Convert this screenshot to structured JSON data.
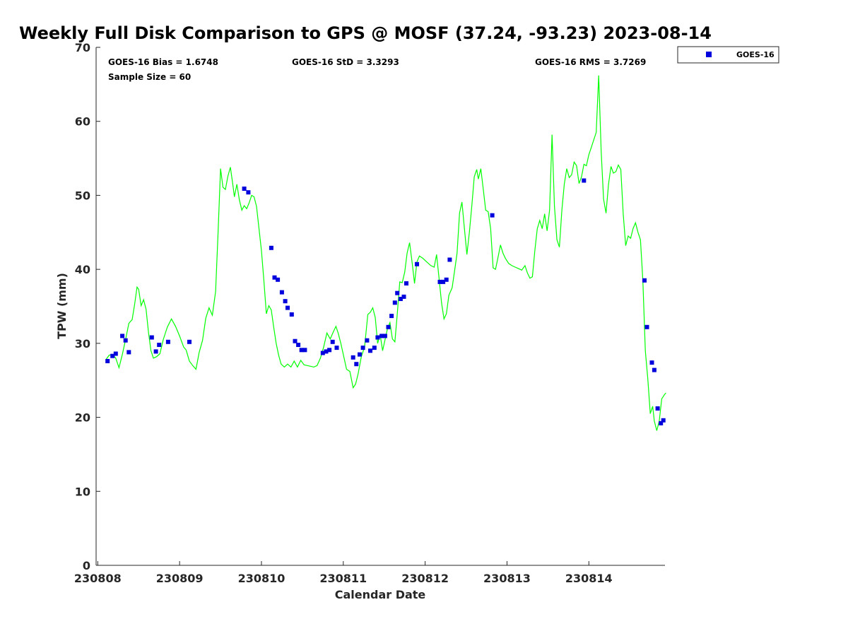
{
  "chart_data": {
    "type": "scatter",
    "title": "Weekly Full Disk Comparison to GPS @ MOSF (37.24, -93.23) 2023-08-14",
    "xlabel": "Calendar Date",
    "ylabel": "TPW (mm)",
    "x_unit": "days (0 = 230808)",
    "xlim": [
      -0.02,
      6.93
    ],
    "ylim": [
      0,
      70
    ],
    "x_ticks": [
      {
        "value": 0,
        "label": "230808"
      },
      {
        "value": 1,
        "label": "230809"
      },
      {
        "value": 2,
        "label": "230810"
      },
      {
        "value": 3,
        "label": "230811"
      },
      {
        "value": 4,
        "label": "230812"
      },
      {
        "value": 5,
        "label": "230813"
      },
      {
        "value": 6,
        "label": "230814"
      }
    ],
    "y_ticks": [
      0,
      10,
      20,
      30,
      40,
      50,
      60,
      70
    ],
    "grid": false,
    "legend": {
      "position": "outside-top-right",
      "entries": [
        "GOES-16"
      ]
    },
    "stats": {
      "bias": "GOES-16 Bias = 1.6748",
      "std": "GOES-16 StD = 3.3293",
      "rms": "GOES-16 RMS = 3.7269",
      "sample": "Sample Size = 60"
    },
    "series": [
      {
        "name": "GPS",
        "kind": "line",
        "color": "#00ff00",
        "points": [
          [
            0.1,
            27.8
          ],
          [
            0.14,
            28.4
          ],
          [
            0.18,
            28.5
          ],
          [
            0.22,
            28.0
          ],
          [
            0.26,
            26.7
          ],
          [
            0.3,
            28.5
          ],
          [
            0.34,
            30.5
          ],
          [
            0.38,
            32.7
          ],
          [
            0.42,
            33.2
          ],
          [
            0.45,
            35.2
          ],
          [
            0.48,
            37.6
          ],
          [
            0.5,
            37.3
          ],
          [
            0.53,
            35.1
          ],
          [
            0.56,
            35.9
          ],
          [
            0.59,
            34.6
          ],
          [
            0.62,
            31.5
          ],
          [
            0.65,
            29.0
          ],
          [
            0.68,
            28.0
          ],
          [
            0.72,
            28.2
          ],
          [
            0.76,
            28.6
          ],
          [
            0.8,
            30.5
          ],
          [
            0.85,
            32.2
          ],
          [
            0.9,
            33.3
          ],
          [
            0.95,
            32.3
          ],
          [
            1.0,
            31.0
          ],
          [
            1.05,
            29.5
          ],
          [
            1.08,
            29.1
          ],
          [
            1.12,
            27.6
          ],
          [
            1.16,
            27.0
          ],
          [
            1.2,
            26.5
          ],
          [
            1.24,
            28.8
          ],
          [
            1.28,
            30.4
          ],
          [
            1.32,
            33.4
          ],
          [
            1.36,
            34.8
          ],
          [
            1.4,
            33.8
          ],
          [
            1.44,
            37.0
          ],
          [
            1.47,
            45.0
          ],
          [
            1.5,
            53.6
          ],
          [
            1.53,
            51.1
          ],
          [
            1.56,
            50.8
          ],
          [
            1.59,
            52.6
          ],
          [
            1.62,
            53.8
          ],
          [
            1.65,
            51.5
          ],
          [
            1.67,
            49.8
          ],
          [
            1.7,
            51.5
          ],
          [
            1.73,
            49.4
          ],
          [
            1.76,
            48.0
          ],
          [
            1.79,
            48.6
          ],
          [
            1.82,
            48.2
          ],
          [
            1.85,
            49.0
          ],
          [
            1.88,
            50.0
          ],
          [
            1.91,
            49.8
          ],
          [
            1.94,
            48.5
          ],
          [
            1.97,
            45.5
          ],
          [
            2.0,
            42.5
          ],
          [
            2.03,
            38.5
          ],
          [
            2.06,
            34.0
          ],
          [
            2.09,
            35.1
          ],
          [
            2.12,
            34.5
          ],
          [
            2.15,
            32.2
          ],
          [
            2.18,
            30.0
          ],
          [
            2.21,
            28.4
          ],
          [
            2.24,
            27.2
          ],
          [
            2.28,
            26.8
          ],
          [
            2.32,
            27.2
          ],
          [
            2.36,
            26.8
          ],
          [
            2.4,
            27.6
          ],
          [
            2.44,
            26.8
          ],
          [
            2.48,
            27.7
          ],
          [
            2.52,
            27.1
          ],
          [
            2.56,
            27.0
          ],
          [
            2.6,
            26.9
          ],
          [
            2.64,
            26.8
          ],
          [
            2.68,
            27.0
          ],
          [
            2.72,
            28.0
          ],
          [
            2.76,
            29.5
          ],
          [
            2.8,
            31.4
          ],
          [
            2.84,
            30.6
          ],
          [
            2.88,
            31.6
          ],
          [
            2.91,
            32.3
          ],
          [
            2.94,
            31.3
          ],
          [
            2.97,
            30.0
          ],
          [
            3.0,
            28.5
          ],
          [
            3.04,
            26.5
          ],
          [
            3.08,
            26.2
          ],
          [
            3.12,
            24.0
          ],
          [
            3.15,
            24.5
          ],
          [
            3.18,
            25.8
          ],
          [
            3.22,
            28.2
          ],
          [
            3.26,
            29.5
          ],
          [
            3.3,
            33.9
          ],
          [
            3.33,
            34.2
          ],
          [
            3.36,
            34.8
          ],
          [
            3.39,
            33.5
          ],
          [
            3.42,
            30.0
          ],
          [
            3.45,
            31.2
          ],
          [
            3.48,
            29.0
          ],
          [
            3.51,
            30.5
          ],
          [
            3.54,
            32.0
          ],
          [
            3.57,
            32.8
          ],
          [
            3.6,
            30.6
          ],
          [
            3.63,
            30.2
          ],
          [
            3.66,
            34.0
          ],
          [
            3.69,
            38.3
          ],
          [
            3.72,
            38.2
          ],
          [
            3.75,
            39.6
          ],
          [
            3.78,
            42.2
          ],
          [
            3.81,
            43.6
          ],
          [
            3.84,
            41.0
          ],
          [
            3.87,
            38.1
          ],
          [
            3.9,
            41.0
          ],
          [
            3.93,
            41.8
          ],
          [
            3.97,
            41.5
          ],
          [
            4.02,
            41.0
          ],
          [
            4.07,
            40.5
          ],
          [
            4.11,
            40.3
          ],
          [
            4.14,
            42.0
          ],
          [
            4.17,
            38.8
          ],
          [
            4.2,
            35.5
          ],
          [
            4.23,
            33.3
          ],
          [
            4.26,
            34.0
          ],
          [
            4.29,
            36.5
          ],
          [
            4.33,
            37.5
          ],
          [
            4.36,
            39.8
          ],
          [
            4.39,
            42.2
          ],
          [
            4.42,
            47.6
          ],
          [
            4.45,
            49.1
          ],
          [
            4.48,
            45.5
          ],
          [
            4.51,
            42.0
          ],
          [
            4.54,
            45.0
          ],
          [
            4.57,
            48.5
          ],
          [
            4.6,
            52.5
          ],
          [
            4.63,
            53.5
          ],
          [
            4.65,
            52.2
          ],
          [
            4.68,
            53.6
          ],
          [
            4.71,
            50.8
          ],
          [
            4.74,
            48.0
          ],
          [
            4.77,
            47.8
          ],
          [
            4.8,
            45.5
          ],
          [
            4.83,
            40.2
          ],
          [
            4.86,
            40.0
          ],
          [
            4.89,
            41.6
          ],
          [
            4.92,
            43.3
          ],
          [
            4.95,
            42.2
          ],
          [
            4.98,
            41.5
          ],
          [
            5.02,
            40.8
          ],
          [
            5.06,
            40.5
          ],
          [
            5.1,
            40.3
          ],
          [
            5.14,
            40.1
          ],
          [
            5.18,
            39.9
          ],
          [
            5.22,
            40.5
          ],
          [
            5.25,
            39.5
          ],
          [
            5.28,
            38.8
          ],
          [
            5.31,
            39.0
          ],
          [
            5.34,
            42.5
          ],
          [
            5.37,
            45.5
          ],
          [
            5.4,
            46.6
          ],
          [
            5.43,
            45.5
          ],
          [
            5.46,
            47.5
          ],
          [
            5.49,
            45.2
          ],
          [
            5.52,
            48.0
          ],
          [
            5.55,
            58.2
          ],
          [
            5.58,
            48.5
          ],
          [
            5.61,
            44.0
          ],
          [
            5.64,
            43.0
          ],
          [
            5.67,
            48.0
          ],
          [
            5.7,
            51.5
          ],
          [
            5.73,
            53.6
          ],
          [
            5.76,
            52.4
          ],
          [
            5.79,
            52.8
          ],
          [
            5.82,
            54.5
          ],
          [
            5.85,
            54.0
          ],
          [
            5.88,
            51.6
          ],
          [
            5.91,
            52.5
          ],
          [
            5.94,
            54.2
          ],
          [
            5.97,
            54.0
          ],
          [
            6.0,
            55.5
          ],
          [
            6.03,
            56.5
          ],
          [
            6.06,
            57.5
          ],
          [
            6.09,
            58.5
          ],
          [
            6.12,
            66.2
          ],
          [
            6.15,
            56.0
          ],
          [
            6.18,
            49.5
          ],
          [
            6.21,
            47.6
          ],
          [
            6.24,
            51.5
          ],
          [
            6.27,
            53.9
          ],
          [
            6.3,
            53.0
          ],
          [
            6.33,
            53.2
          ],
          [
            6.36,
            54.1
          ],
          [
            6.39,
            53.5
          ],
          [
            6.42,
            47.5
          ],
          [
            6.45,
            43.2
          ],
          [
            6.48,
            44.5
          ],
          [
            6.51,
            44.2
          ],
          [
            6.54,
            45.5
          ],
          [
            6.57,
            46.3
          ],
          [
            6.6,
            45.0
          ],
          [
            6.63,
            44.0
          ],
          [
            6.66,
            38.5
          ],
          [
            6.69,
            29.0
          ],
          [
            6.72,
            25.2
          ],
          [
            6.75,
            20.5
          ],
          [
            6.78,
            21.5
          ],
          [
            6.8,
            19.5
          ],
          [
            6.83,
            18.2
          ],
          [
            6.86,
            19.5
          ],
          [
            6.89,
            22.5
          ],
          [
            6.92,
            23.0
          ],
          [
            6.94,
            23.3
          ]
        ]
      },
      {
        "name": "GOES-16",
        "kind": "scatter",
        "color": "#0000dd",
        "points": [
          [
            0.12,
            27.6
          ],
          [
            0.18,
            28.3
          ],
          [
            0.22,
            28.6
          ],
          [
            0.3,
            31.0
          ],
          [
            0.34,
            30.4
          ],
          [
            0.38,
            28.8
          ],
          [
            0.66,
            30.8
          ],
          [
            0.71,
            28.9
          ],
          [
            0.75,
            29.8
          ],
          [
            0.86,
            30.2
          ],
          [
            1.12,
            30.2
          ],
          [
            1.79,
            50.9
          ],
          [
            1.84,
            50.4
          ],
          [
            2.12,
            42.9
          ],
          [
            2.16,
            38.9
          ],
          [
            2.2,
            38.6
          ],
          [
            2.25,
            36.9
          ],
          [
            2.29,
            35.7
          ],
          [
            2.32,
            34.8
          ],
          [
            2.37,
            33.9
          ],
          [
            2.41,
            30.3
          ],
          [
            2.45,
            29.8
          ],
          [
            2.49,
            29.1
          ],
          [
            2.53,
            29.1
          ],
          [
            2.75,
            28.7
          ],
          [
            2.79,
            28.9
          ],
          [
            2.83,
            29.1
          ],
          [
            2.87,
            30.2
          ],
          [
            2.92,
            29.4
          ],
          [
            3.12,
            28.1
          ],
          [
            3.16,
            27.2
          ],
          [
            3.2,
            28.5
          ],
          [
            3.24,
            29.4
          ],
          [
            3.29,
            30.4
          ],
          [
            3.33,
            29.0
          ],
          [
            3.38,
            29.4
          ],
          [
            3.42,
            30.8
          ],
          [
            3.47,
            31.0
          ],
          [
            3.51,
            31.0
          ],
          [
            3.55,
            32.2
          ],
          [
            3.59,
            33.7
          ],
          [
            3.63,
            35.5
          ],
          [
            3.66,
            36.8
          ],
          [
            3.7,
            36.0
          ],
          [
            3.74,
            36.3
          ],
          [
            3.77,
            38.1
          ],
          [
            3.9,
            40.7
          ],
          [
            4.18,
            38.3
          ],
          [
            4.22,
            38.3
          ],
          [
            4.26,
            38.6
          ],
          [
            4.3,
            41.3
          ],
          [
            4.82,
            47.3
          ],
          [
            5.94,
            52.0
          ],
          [
            6.68,
            38.5
          ],
          [
            6.71,
            32.2
          ],
          [
            6.77,
            27.4
          ],
          [
            6.8,
            26.4
          ],
          [
            6.84,
            21.2
          ],
          [
            6.88,
            19.2
          ],
          [
            6.91,
            19.6
          ]
        ]
      }
    ]
  }
}
